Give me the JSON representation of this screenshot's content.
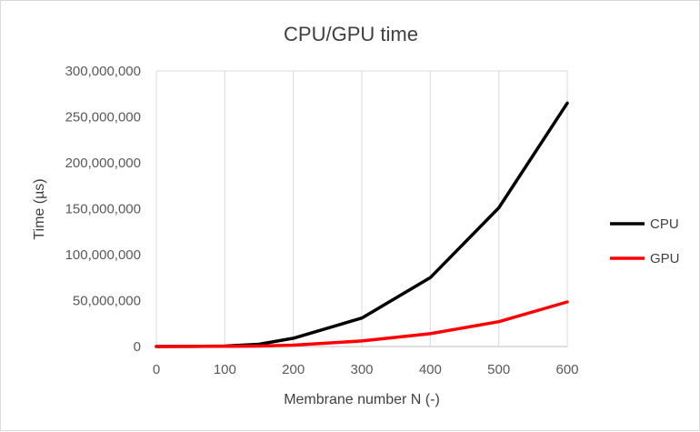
{
  "chart_data": {
    "type": "line",
    "title": "CPU/GPU time",
    "xlabel": "Membrane number N (-)",
    "ylabel": "Time (µs)",
    "xlim": [
      0,
      600
    ],
    "ylim": [
      0,
      300000000
    ],
    "x_ticks": [
      0,
      100,
      200,
      300,
      400,
      500,
      600
    ],
    "x_tick_labels": [
      "0",
      "100",
      "200",
      "300",
      "400",
      "500",
      "600"
    ],
    "y_ticks": [
      0,
      50000000,
      100000000,
      150000000,
      200000000,
      250000000,
      300000000
    ],
    "y_tick_labels": [
      "0",
      "50,000,000",
      "100,000,000",
      "150,000,000",
      "200,000,000",
      "250,000,000",
      "300,000,000"
    ],
    "grid": "vertical",
    "legend_position": "right",
    "series": [
      {
        "name": "CPU",
        "color": "#000000",
        "x": [
          0,
          50,
          100,
          150,
          200,
          300,
          400,
          500,
          600
        ],
        "y": [
          0,
          100000,
          500000,
          2500000,
          9000000,
          31000000,
          75000000,
          151000000,
          265000000
        ]
      },
      {
        "name": "GPU",
        "color": "#ff0000",
        "x": [
          0,
          50,
          100,
          150,
          200,
          300,
          400,
          500,
          600
        ],
        "y": [
          0,
          50000,
          200000,
          500000,
          1500000,
          6000000,
          14000000,
          27000000,
          48500000
        ]
      }
    ]
  }
}
